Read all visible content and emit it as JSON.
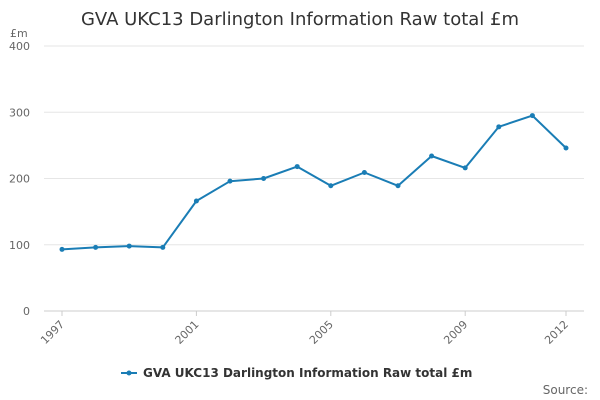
{
  "chart_data": {
    "type": "line",
    "title": "GVA UKC13 Darlington Information Raw total £m",
    "unit_label": "£m",
    "x": [
      "1997",
      "1998",
      "1999",
      "2000",
      "2001",
      "2002",
      "2003",
      "2004",
      "2005",
      "2006",
      "2007",
      "2008",
      "2009",
      "2010",
      "2011",
      "2012"
    ],
    "x_tick_labels": [
      "1997",
      "2001",
      "2005",
      "2009",
      "2012"
    ],
    "y_ticks": [
      "0",
      "100",
      "200",
      "300",
      "400"
    ],
    "ylim": [
      0,
      400
    ],
    "grid": true,
    "legend_position": "bottom",
    "series": [
      {
        "name": "GVA UKC13 Darlington Information Raw total £m",
        "color": "#1a7db5",
        "values": [
          93,
          96,
          98,
          96,
          166,
          196,
          200,
          218,
          189,
          209,
          189,
          234,
          216,
          278,
          295,
          246
        ]
      }
    ]
  },
  "footer": {
    "source_label": "Source:"
  }
}
